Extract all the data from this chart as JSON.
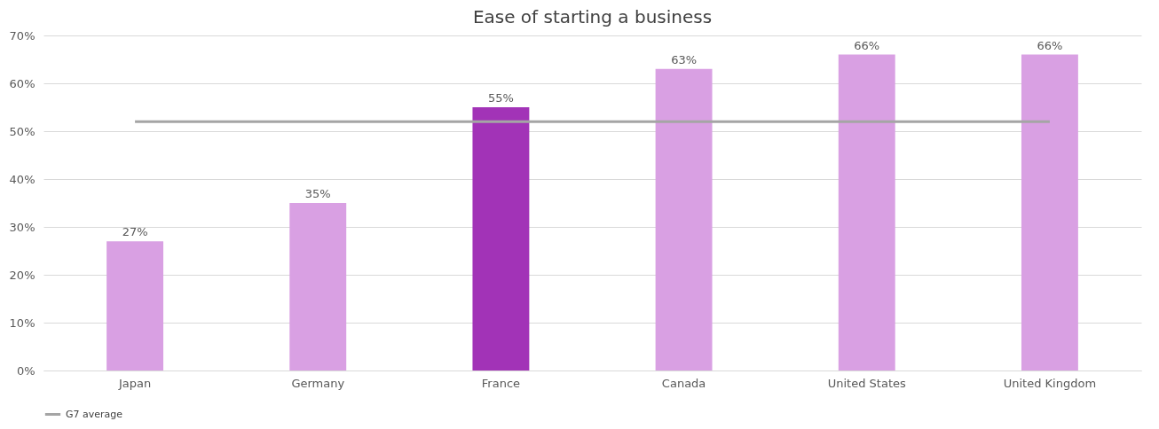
{
  "chart_data": {
    "type": "bar",
    "title": "Ease of starting a business",
    "categories": [
      "Japan",
      "Germany",
      "France",
      "Canada",
      "United States",
      "United Kingdom"
    ],
    "values": [
      27,
      35,
      55,
      63,
      66,
      66
    ],
    "colors": [
      "#d9a0e3",
      "#d9a0e3",
      "#a233b7",
      "#d9a0e3",
      "#d9a0e3",
      "#d9a0e3"
    ],
    "value_labels": [
      "27%",
      "35%",
      "55%",
      "63%",
      "66%",
      "66%"
    ],
    "series": [
      {
        "name": "G7 average",
        "type": "line",
        "color": "#a5a5a5",
        "values": [
          52,
          52,
          52,
          52,
          52,
          52
        ]
      }
    ],
    "ylim": [
      0,
      70
    ],
    "yticks": [
      {
        "value": 0,
        "label": "0%"
      },
      {
        "value": 10,
        "label": "10%"
      },
      {
        "value": 20,
        "label": "20%"
      },
      {
        "value": 30,
        "label": "30%"
      },
      {
        "value": 40,
        "label": "40%"
      },
      {
        "value": 50,
        "label": "50%"
      },
      {
        "value": 60,
        "label": "60%"
      },
      {
        "value": 70,
        "label": "70%"
      }
    ],
    "grid": "y",
    "legend": "bottom"
  }
}
